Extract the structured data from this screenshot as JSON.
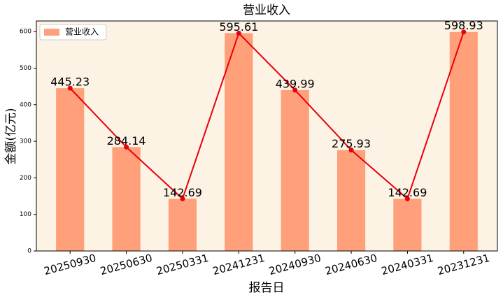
{
  "chart_data": {
    "type": "bar_line",
    "title": "营业收入",
    "x_label": "报告日",
    "y_label": "金额(亿元)",
    "categories": [
      "20250930",
      "20250630",
      "20250331",
      "20241231",
      "20240930",
      "20240630",
      "20240331",
      "20231231"
    ],
    "series": [
      {
        "name": "营业收入",
        "color": "#ffa07a",
        "line_color": "#e8000b",
        "values": [
          445.23,
          284.14,
          142.69,
          595.61,
          439.99,
          275.93,
          142.69,
          598.93
        ],
        "value_labels": [
          "445.23",
          "284.14",
          "142.69",
          "595.61",
          "439.99",
          "275.93",
          "142.69",
          "598.93"
        ]
      }
    ],
    "ylim": [
      0,
      629
    ],
    "yticks": [
      0,
      100,
      200,
      300,
      400,
      500,
      600
    ],
    "legend": "upper left",
    "background": "#fdf3e5"
  }
}
